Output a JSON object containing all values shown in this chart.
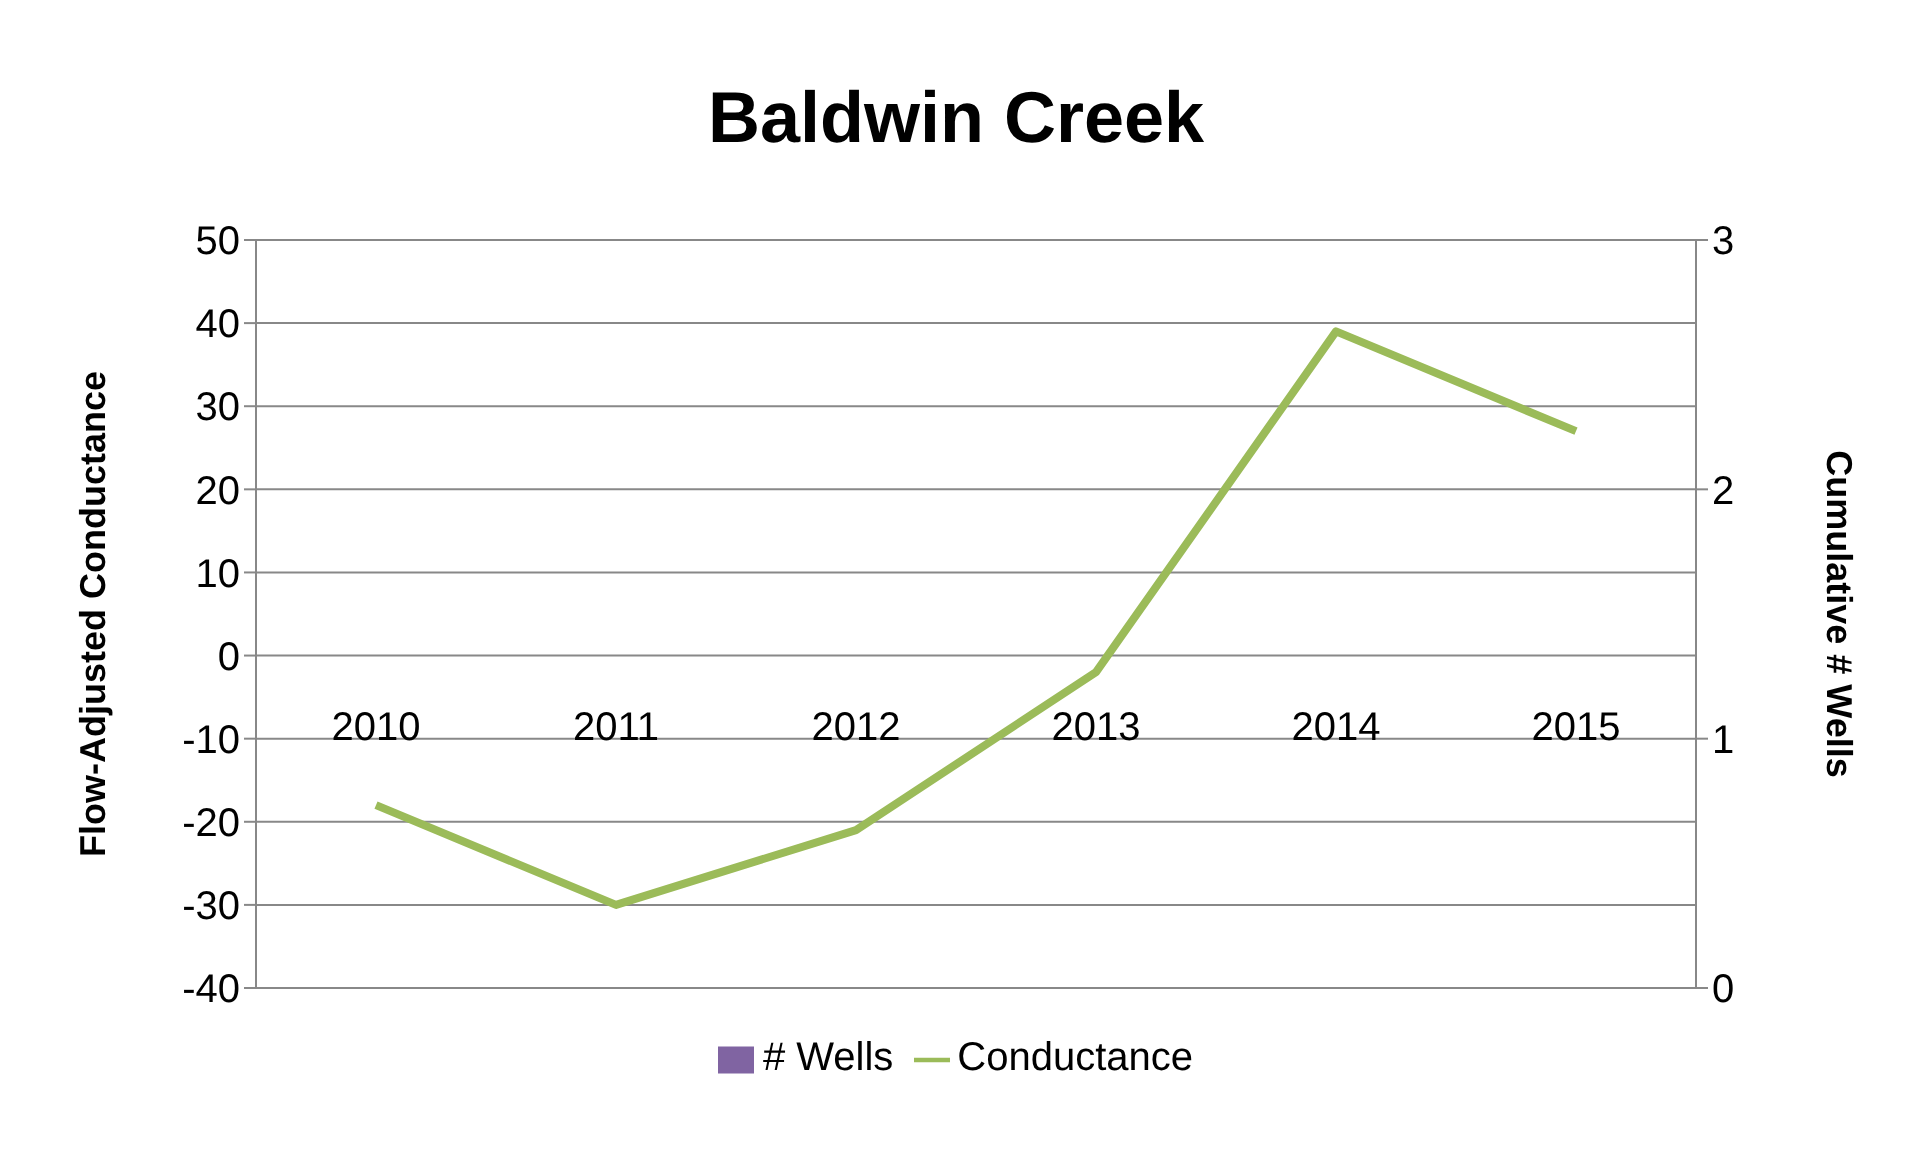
{
  "chart_data": {
    "type": "line",
    "title": "Baldwin Creek",
    "ylabel": "Flow-Adjusted Conductance",
    "y2label": "Cumulative # Wells",
    "categories": [
      "2010",
      "2011",
      "2012",
      "2013",
      "2014",
      "2015"
    ],
    "series": [
      {
        "name": "# Wells",
        "type": "bar",
        "axis": "y2",
        "color": "#8064a2",
        "values": [
          0,
          0,
          0,
          0,
          0,
          0
        ]
      },
      {
        "name": "Conductance",
        "color": "#9bbb59",
        "values": [
          -18,
          -30,
          -21,
          -2,
          39,
          27
        ]
      }
    ],
    "ylim": [
      -40,
      50
    ],
    "yticks": [
      -40,
      -30,
      -20,
      -10,
      0,
      10,
      20,
      30,
      40,
      50
    ],
    "y2lim": [
      0,
      3
    ],
    "y2ticks": [
      0,
      1,
      2,
      3
    ],
    "grid": "y",
    "legend": "bottom",
    "marker": "none",
    "line_style": "solid"
  }
}
